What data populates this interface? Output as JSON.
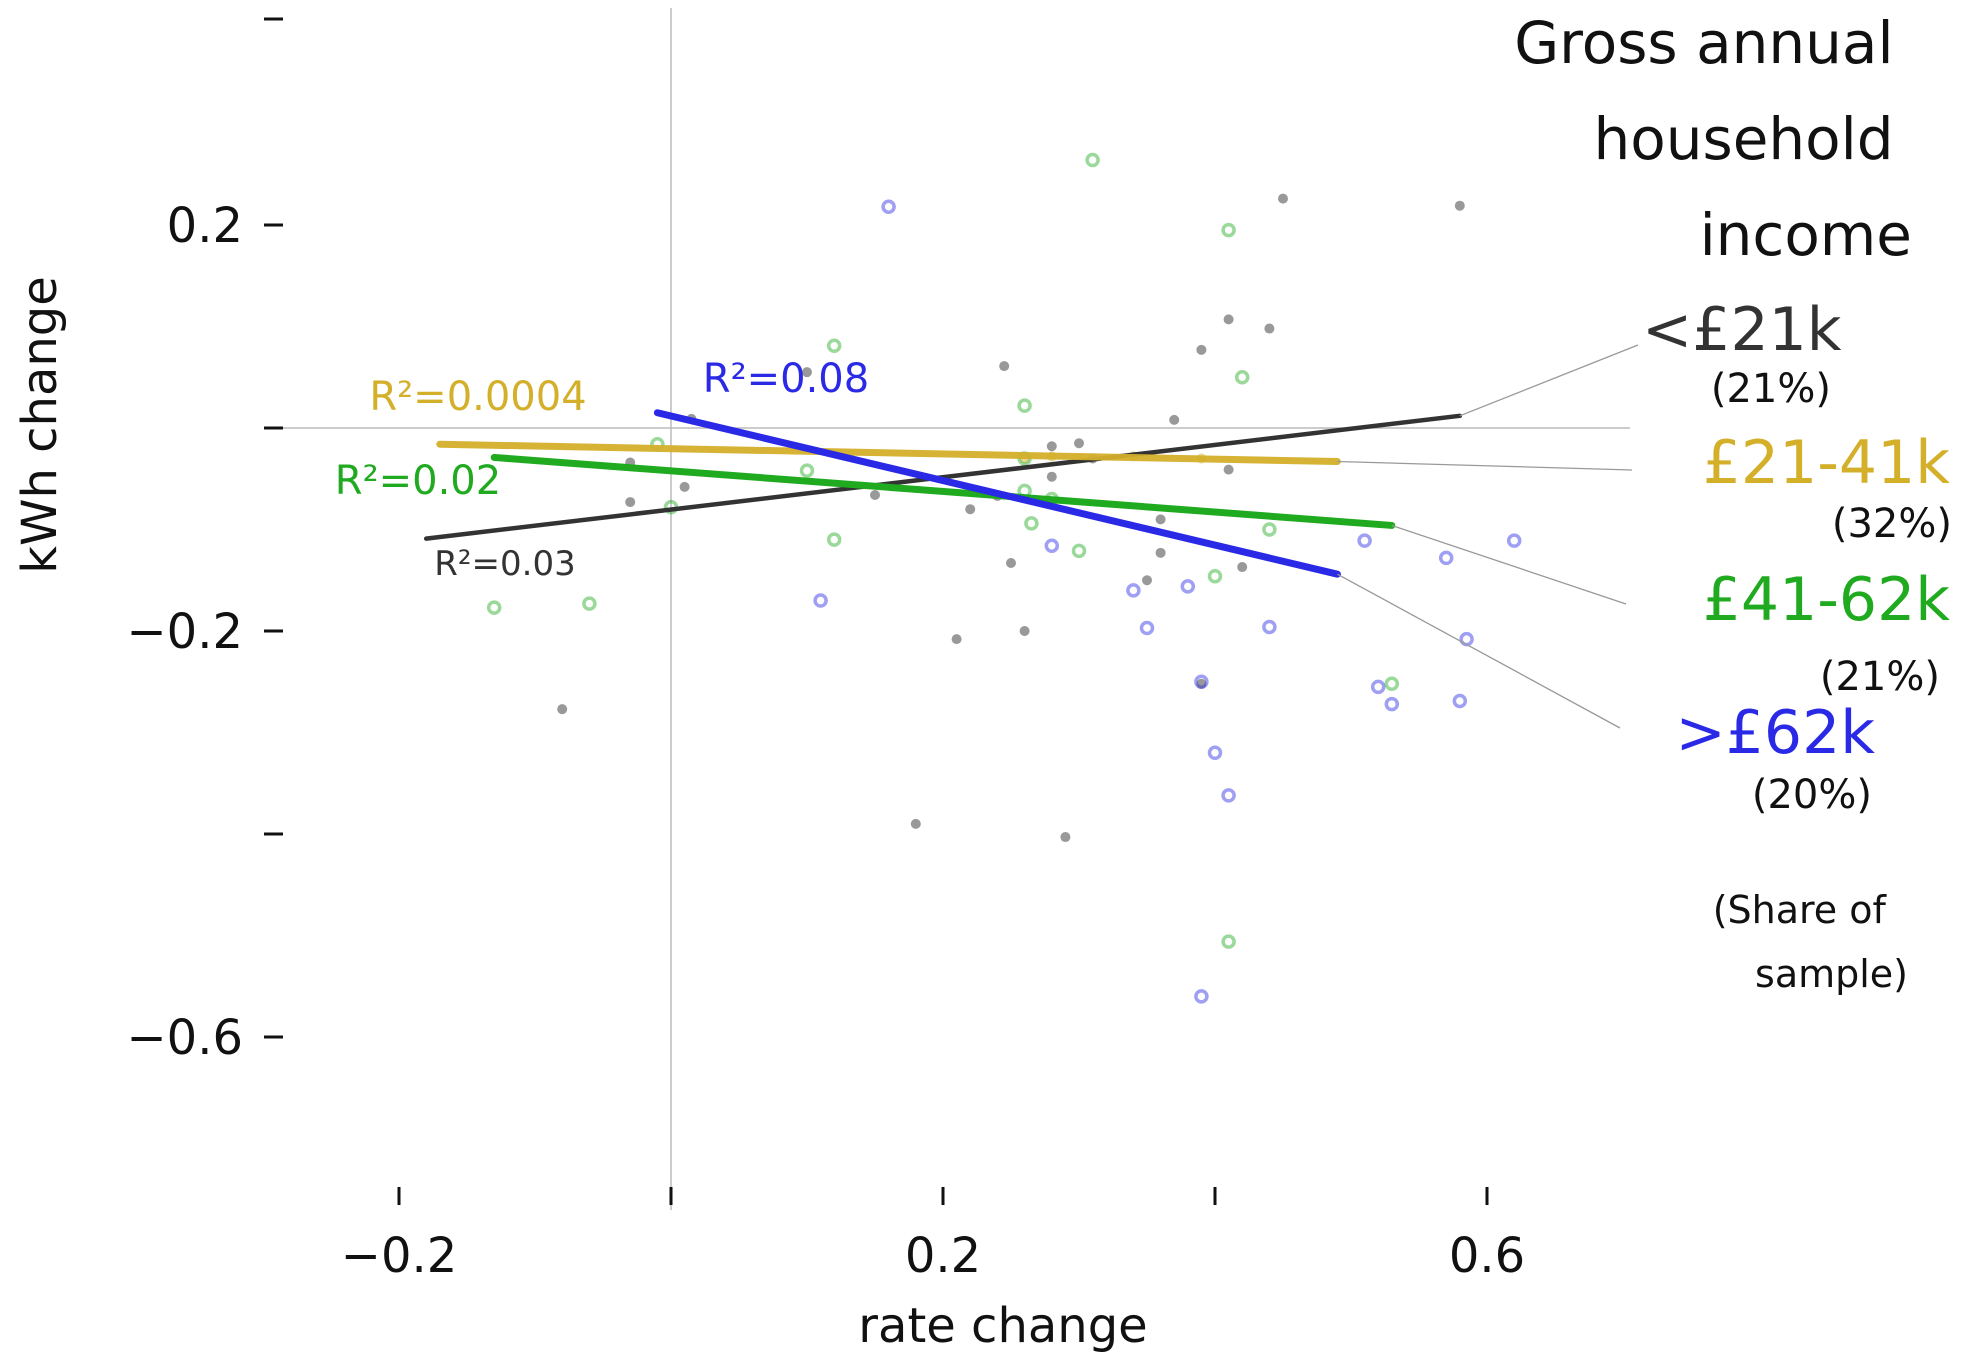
{
  "chart_data": {
    "type": "scatter",
    "xlabel": "rate change",
    "ylabel": "kWh change",
    "xlim": [
      -0.2,
      0.72
    ],
    "ylim": [
      -0.6,
      0.2
    ],
    "xticks": [
      -0.2,
      0.0,
      0.2,
      0.4,
      0.6
    ],
    "xtick_labels": [
      "−0.2",
      "",
      "0.2",
      "",
      "0.6"
    ],
    "yticks": [
      0.2,
      0.0,
      -0.2,
      -0.4,
      -0.6
    ],
    "ytick_labels": [
      "0.2",
      "",
      "−0.2",
      "",
      "−0.6"
    ],
    "reference_lines": {
      "x": 0.0,
      "y": 0.0
    },
    "legend_title": "Gross annual household income",
    "legend_note": "(Share of sample)",
    "series": [
      {
        "name": "<£21k",
        "share": "(21%)",
        "r2_label": "R²=0.03",
        "color": "#333333",
        "marker": "dot",
        "fit": [
          [
            -0.18,
            -0.109
          ],
          [
            0.58,
            0.012
          ]
        ],
        "points": [
          [
            -0.08,
            -0.277
          ],
          [
            -0.03,
            -0.034
          ],
          [
            -0.03,
            -0.073
          ],
          [
            0.01,
            -0.058
          ],
          [
            0.015,
            0.009
          ],
          [
            0.1,
            0.055
          ],
          [
            0.15,
            -0.066
          ],
          [
            0.21,
            -0.208
          ],
          [
            0.18,
            -0.39
          ],
          [
            0.22,
            -0.08
          ],
          [
            0.24,
            -0.067
          ],
          [
            0.245,
            0.061
          ],
          [
            0.25,
            -0.133
          ],
          [
            0.26,
            -0.2
          ],
          [
            0.28,
            -0.018
          ],
          [
            0.29,
            -0.403
          ],
          [
            0.3,
            -0.015
          ],
          [
            0.31,
            -0.03
          ],
          [
            0.35,
            -0.15
          ],
          [
            0.36,
            -0.09
          ],
          [
            0.36,
            -0.123
          ],
          [
            0.37,
            0.008
          ],
          [
            0.39,
            0.077
          ],
          [
            0.39,
            -0.252
          ],
          [
            0.41,
            0.107
          ],
          [
            0.41,
            -0.041
          ],
          [
            0.42,
            -0.137
          ],
          [
            0.44,
            0.098
          ],
          [
            0.45,
            0.226
          ],
          [
            0.58,
            0.219
          ],
          [
            0.28,
            -0.048
          ]
        ]
      },
      {
        "name": "£21-41k",
        "share": "(32%)",
        "r2_label": "R²=0.0004",
        "color": "#d4af2a",
        "marker": "dot",
        "fit": [
          [
            -0.17,
            -0.016
          ],
          [
            0.49,
            -0.033
          ]
        ],
        "points": [
          [
            0.26,
            -0.03
          ],
          [
            0.28,
            -0.028
          ],
          [
            0.3,
            -0.03
          ],
          [
            0.34,
            -0.028
          ],
          [
            0.39,
            -0.03
          ]
        ]
      },
      {
        "name": "£41-62k",
        "share": "(21%)",
        "r2_label": "R²=0.02",
        "color": "#1faa1f",
        "marker": "ring",
        "fit": [
          [
            -0.13,
            -0.029
          ],
          [
            0.53,
            -0.096
          ]
        ],
        "points": [
          [
            -0.13,
            -0.177
          ],
          [
            -0.06,
            -0.173
          ],
          [
            0.0,
            -0.078
          ],
          [
            -0.01,
            -0.016
          ],
          [
            0.1,
            -0.042
          ],
          [
            0.12,
            -0.11
          ],
          [
            0.12,
            0.081
          ],
          [
            0.26,
            -0.03
          ],
          [
            0.265,
            -0.094
          ],
          [
            0.26,
            0.022
          ],
          [
            0.28,
            -0.07
          ],
          [
            0.3,
            -0.121
          ],
          [
            0.31,
            0.264
          ],
          [
            0.4,
            -0.146
          ],
          [
            0.41,
            0.195
          ],
          [
            0.42,
            0.05
          ],
          [
            0.44,
            -0.1
          ],
          [
            0.53,
            -0.252
          ],
          [
            0.41,
            -0.506
          ],
          [
            0.26,
            -0.062
          ]
        ]
      },
      {
        "name": ">£62k",
        "share": "(20%)",
        "r2_label": "R²=0.08",
        "color": "#2a2ae6",
        "marker": "ring",
        "fit": [
          [
            -0.01,
            0.015
          ],
          [
            0.49,
            -0.144
          ]
        ],
        "points": [
          [
            0.16,
            0.218
          ],
          [
            0.11,
            -0.17
          ],
          [
            0.28,
            -0.116
          ],
          [
            0.35,
            -0.197
          ],
          [
            0.34,
            -0.16
          ],
          [
            0.38,
            -0.156
          ],
          [
            0.39,
            -0.25
          ],
          [
            0.4,
            -0.32
          ],
          [
            0.41,
            -0.362
          ],
          [
            0.39,
            -0.56
          ],
          [
            0.44,
            -0.196
          ],
          [
            0.52,
            -0.255
          ],
          [
            0.53,
            -0.272
          ],
          [
            0.51,
            -0.111
          ],
          [
            0.57,
            -0.128
          ],
          [
            0.58,
            -0.269
          ],
          [
            0.585,
            -0.208
          ],
          [
            0.62,
            -0.111
          ]
        ]
      }
    ]
  }
}
